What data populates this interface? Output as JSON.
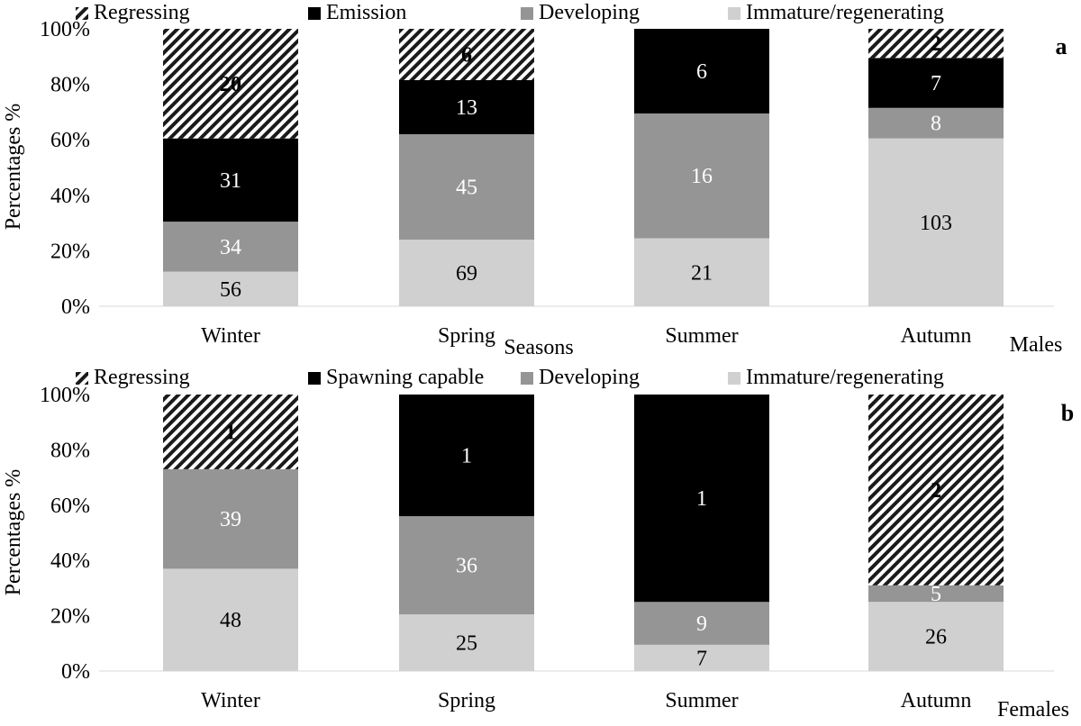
{
  "chart_data": [
    {
      "panel_letter": "a",
      "type": "bar",
      "stacked": "percent",
      "categories": [
        "Winter",
        "Spring",
        "Summer",
        "Autumn"
      ],
      "series": [
        {
          "name": "Immature/regenerating",
          "color": "#d0d0d0",
          "values": [
            56,
            69,
            21,
            103
          ]
        },
        {
          "name": "Developing",
          "color": "#959595",
          "values": [
            34,
            45,
            16,
            8
          ]
        },
        {
          "name": "Emission",
          "color": "#000000",
          "values": [
            31,
            13,
            6,
            7
          ]
        },
        {
          "name": "Regressing",
          "color": "hatch",
          "values": [
            20,
            6,
            null,
            2
          ]
        }
      ],
      "percent_tops": [
        [
          12.5,
          30.5,
          60.5,
          100
        ],
        [
          24,
          62,
          81.5,
          100
        ],
        [
          24.5,
          69.5,
          100,
          null
        ],
        [
          60.5,
          71.5,
          89.5,
          100
        ]
      ],
      "xlabel": "Seasons",
      "ylabel": "Percentages %",
      "corner_label": "Males",
      "yticks": [
        "0%",
        "20%",
        "40%",
        "60%",
        "80%",
        "100%"
      ],
      "ylim": [
        0,
        100
      ],
      "legend_position": "top"
    },
    {
      "panel_letter": "b",
      "type": "bar",
      "stacked": "percent",
      "categories": [
        "Winter",
        "Spring",
        "Summer",
        "Autumn"
      ],
      "series": [
        {
          "name": "Immature/regenerating",
          "color": "#d0d0d0",
          "values": [
            48,
            25,
            7,
            26
          ]
        },
        {
          "name": "Developing",
          "color": "#959595",
          "values": [
            39,
            36,
            9,
            5
          ]
        },
        {
          "name": "Spawning capable",
          "color": "#000000",
          "values": [
            null,
            1,
            1,
            null
          ]
        },
        {
          "name": "Regressing",
          "color": "hatch",
          "values": [
            1,
            null,
            null,
            2
          ]
        }
      ],
      "percent_tops": [
        [
          37,
          73,
          null,
          100
        ],
        [
          20.5,
          56,
          100,
          null
        ],
        [
          9.5,
          25,
          100,
          null
        ],
        [
          25,
          31,
          null,
          100
        ]
      ],
      "ylabel": "Percentages %",
      "corner_label": "Females",
      "yticks": [
        "0%",
        "20%",
        "40%",
        "60%",
        "80%",
        "100%"
      ],
      "ylim": [
        0,
        100
      ],
      "legend_position": "top"
    }
  ]
}
